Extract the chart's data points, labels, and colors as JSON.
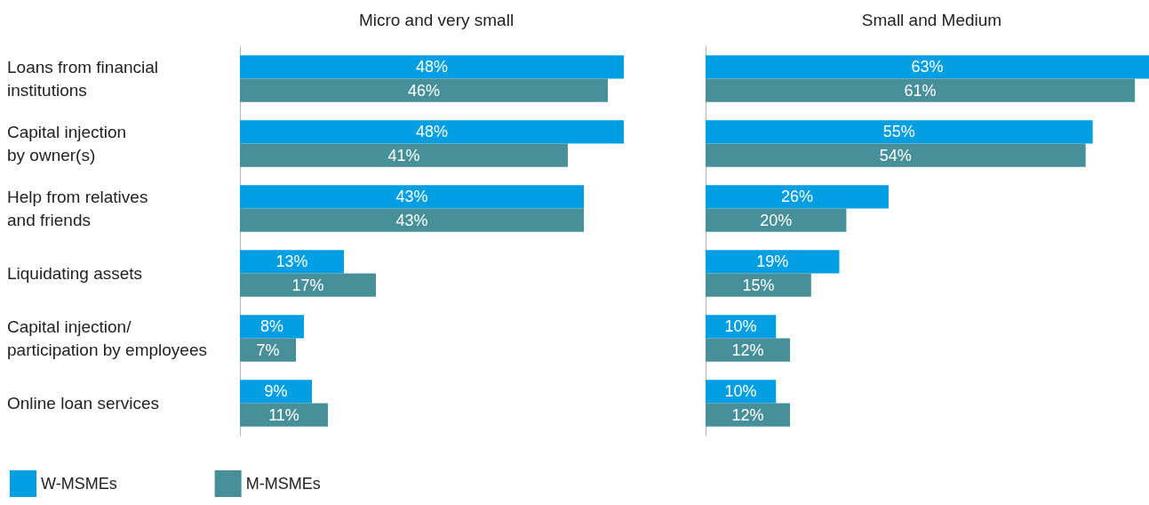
{
  "chart_data": [
    {
      "type": "bar",
      "orientation": "horizontal",
      "title": "Micro and very small",
      "categories": [
        "Loans from financial\ninstitutions",
        "Capital injection\nby owner(s)",
        "Help from relatives\nand friends",
        "Liquidating assets",
        "Capital injection/\nparticipation by employees",
        "Online loan services"
      ],
      "series": [
        {
          "name": "W-MSMEs",
          "color": "#009fe3",
          "values": [
            48,
            48,
            43,
            13,
            8,
            9
          ],
          "value_labels": [
            "48%",
            "48%",
            "43%",
            "13%",
            "8%",
            "9%"
          ]
        },
        {
          "name": "M-MSMEs",
          "color": "#478f99",
          "values": [
            46,
            41,
            43,
            17,
            7,
            11
          ],
          "value_labels": [
            "46%",
            "41%",
            "43%",
            "17%",
            "7%",
            "11%"
          ]
        }
      ],
      "tick_labels": "y",
      "legend": "bottom left"
    },
    {
      "type": "bar",
      "orientation": "horizontal",
      "title": "Small and Medium",
      "categories": [
        null,
        null,
        null,
        null,
        null,
        null
      ],
      "series": [
        {
          "color": "#009fe3",
          "values": [
            63,
            55,
            26,
            19,
            10,
            10
          ],
          "value_labels": [
            "63%",
            "55%",
            "26%",
            "19%",
            "10%",
            "10%"
          ]
        },
        {
          "color": "#478f99",
          "values": [
            61,
            54,
            20,
            15,
            12,
            12
          ],
          "value_labels": [
            "61%",
            "54%",
            "20%",
            "15%",
            "12%",
            "12%"
          ]
        }
      ],
      "tick_labels": false,
      "legend": false
    }
  ]
}
